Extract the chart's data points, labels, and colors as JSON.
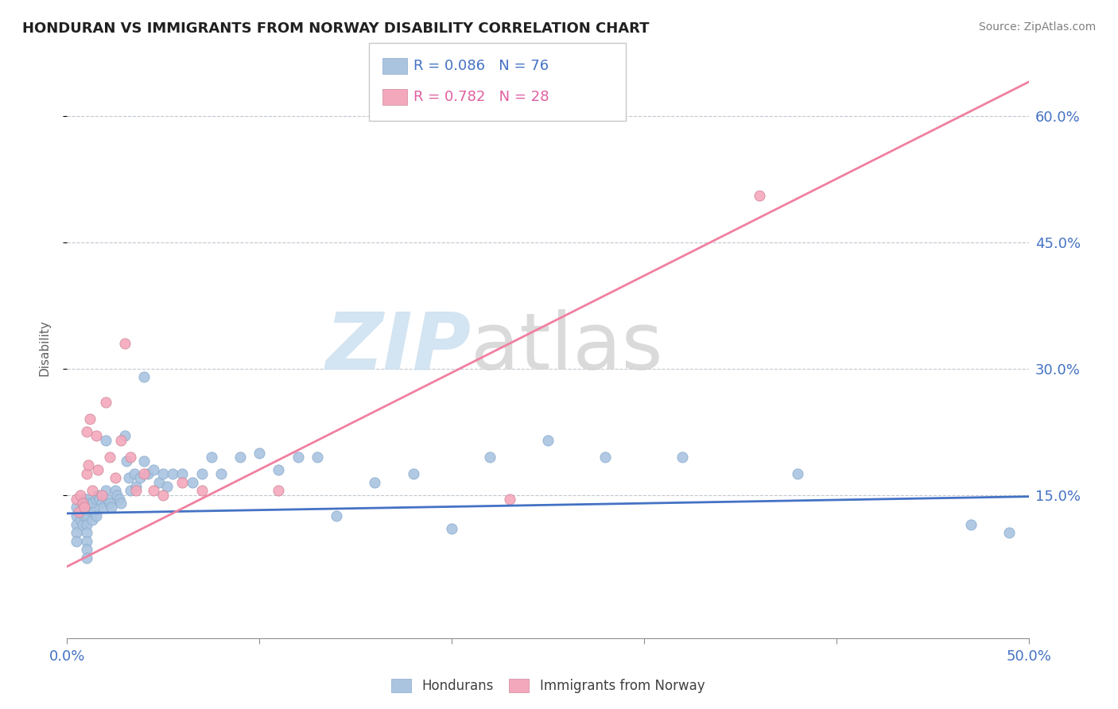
{
  "title": "HONDURAN VS IMMIGRANTS FROM NORWAY DISABILITY CORRELATION CHART",
  "source": "Source: ZipAtlas.com",
  "ylabel_ticks": [
    0.15,
    0.3,
    0.45,
    0.6
  ],
  "ylabel_labels": [
    "15.0%",
    "30.0%",
    "45.0%",
    "60.0%"
  ],
  "xlim": [
    0.0,
    0.5
  ],
  "ylim": [
    -0.02,
    0.67
  ],
  "legend_blue_r": "R = 0.086",
  "legend_blue_n": "N = 76",
  "legend_pink_r": "R = 0.782",
  "legend_pink_n": "N = 28",
  "blue_color": "#aac4e0",
  "pink_color": "#f4a8bc",
  "blue_line_color": "#4472c4",
  "pink_line_color": "#f080a0",
  "honduran_x": [
    0.005,
    0.005,
    0.005,
    0.005,
    0.005,
    0.007,
    0.007,
    0.008,
    0.008,
    0.008,
    0.009,
    0.009,
    0.01,
    0.01,
    0.01,
    0.01,
    0.01,
    0.01,
    0.01,
    0.01,
    0.011,
    0.012,
    0.013,
    0.013,
    0.014,
    0.015,
    0.015,
    0.016,
    0.017,
    0.018,
    0.019,
    0.02,
    0.02,
    0.021,
    0.022,
    0.023,
    0.025,
    0.026,
    0.027,
    0.028,
    0.03,
    0.031,
    0.032,
    0.033,
    0.035,
    0.036,
    0.038,
    0.04,
    0.04,
    0.042,
    0.045,
    0.048,
    0.05,
    0.052,
    0.055,
    0.06,
    0.065,
    0.07,
    0.075,
    0.08,
    0.09,
    0.1,
    0.11,
    0.12,
    0.13,
    0.14,
    0.16,
    0.18,
    0.2,
    0.22,
    0.25,
    0.28,
    0.32,
    0.38,
    0.47,
    0.49
  ],
  "honduran_y": [
    0.135,
    0.125,
    0.115,
    0.105,
    0.095,
    0.13,
    0.12,
    0.14,
    0.13,
    0.115,
    0.145,
    0.125,
    0.145,
    0.135,
    0.125,
    0.115,
    0.105,
    0.095,
    0.085,
    0.075,
    0.14,
    0.135,
    0.14,
    0.12,
    0.13,
    0.145,
    0.125,
    0.15,
    0.145,
    0.14,
    0.135,
    0.215,
    0.155,
    0.145,
    0.14,
    0.135,
    0.155,
    0.15,
    0.145,
    0.14,
    0.22,
    0.19,
    0.17,
    0.155,
    0.175,
    0.16,
    0.17,
    0.29,
    0.19,
    0.175,
    0.18,
    0.165,
    0.175,
    0.16,
    0.175,
    0.175,
    0.165,
    0.175,
    0.195,
    0.175,
    0.195,
    0.2,
    0.18,
    0.195,
    0.195,
    0.125,
    0.165,
    0.175,
    0.11,
    0.195,
    0.215,
    0.195,
    0.195,
    0.175,
    0.115,
    0.105
  ],
  "norway_x": [
    0.005,
    0.006,
    0.007,
    0.008,
    0.009,
    0.01,
    0.01,
    0.011,
    0.012,
    0.013,
    0.015,
    0.016,
    0.018,
    0.02,
    0.022,
    0.025,
    0.028,
    0.03,
    0.033,
    0.036,
    0.04,
    0.045,
    0.05,
    0.06,
    0.07,
    0.11,
    0.23,
    0.36
  ],
  "norway_y": [
    0.145,
    0.13,
    0.15,
    0.14,
    0.135,
    0.225,
    0.175,
    0.185,
    0.24,
    0.155,
    0.22,
    0.18,
    0.15,
    0.26,
    0.195,
    0.17,
    0.215,
    0.33,
    0.195,
    0.155,
    0.175,
    0.155,
    0.15,
    0.165,
    0.155,
    0.155,
    0.145,
    0.505
  ],
  "blue_trend_x": [
    0.0,
    0.5
  ],
  "blue_trend_y": [
    0.128,
    0.148
  ],
  "pink_trend_x": [
    0.0,
    0.5
  ],
  "pink_trend_y": [
    0.065,
    0.64
  ]
}
